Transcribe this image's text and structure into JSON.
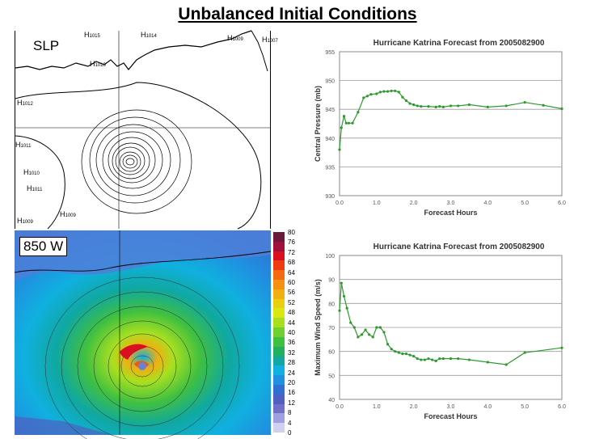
{
  "title": "Unbalanced Initial Conditions",
  "maps": {
    "slp_label": "SLP",
    "wind_label": "850 W",
    "slp_marks": [
      {
        "t": "H",
        "v": "1015"
      },
      {
        "t": "H",
        "v": "1014"
      },
      {
        "t": "H",
        "v": "1009"
      },
      {
        "t": "H",
        "v": "1007"
      },
      {
        "t": "H",
        "v": "1010"
      },
      {
        "t": "H",
        "v": "1012"
      },
      {
        "t": "H",
        "v": "1011"
      },
      {
        "t": "H",
        "v": "1010"
      },
      {
        "t": "H",
        "v": "1011"
      },
      {
        "t": "H",
        "v": "1009"
      },
      {
        "t": "H",
        "v": "1009"
      }
    ]
  },
  "colorbar": {
    "labels": [
      "80",
      "76",
      "72",
      "68",
      "64",
      "60",
      "56",
      "52",
      "48",
      "44",
      "40",
      "36",
      "32",
      "28",
      "24",
      "20",
      "16",
      "12",
      "8",
      "4",
      "0"
    ],
    "colors": [
      "#6b1a3a",
      "#a0103a",
      "#d81020",
      "#f03a10",
      "#f56a10",
      "#f59010",
      "#f0b010",
      "#e8d010",
      "#d8e810",
      "#a8e020",
      "#70d030",
      "#40c040",
      "#20b060",
      "#10a8a0",
      "#10b0e0",
      "#2090e0",
      "#3070d0",
      "#5060c0",
      "#7070c8",
      "#a0a0e0",
      "#d0d0f0"
    ]
  },
  "chart_data": [
    {
      "type": "line",
      "title": "Hurricane Katrina Forecast from 2005082900",
      "xlabel": "Forecast Hours",
      "ylabel": "Central Pressure (mb)",
      "xlim": [
        0,
        6
      ],
      "ylim": [
        930,
        955
      ],
      "xticks": [
        "0.0",
        "1.0",
        "2.0",
        "3.0",
        "4.0",
        "5.0",
        "6.0"
      ],
      "yticks": [
        "955",
        "950",
        "945",
        "940",
        "935",
        "930"
      ],
      "series": [
        {
          "color": "#2e9a2e",
          "x": [
            0.0,
            0.05,
            0.12,
            0.18,
            0.25,
            0.35,
            0.5,
            0.65,
            0.75,
            0.85,
            1.0,
            1.1,
            1.2,
            1.3,
            1.4,
            1.5,
            1.6,
            1.7,
            1.8,
            1.9,
            2.0,
            2.1,
            2.2,
            2.4,
            2.6,
            2.7,
            2.8,
            3.0,
            3.2,
            3.5,
            4.0,
            4.5,
            5.0,
            5.5,
            6.0
          ],
          "y": [
            938.0,
            941.8,
            943.8,
            942.6,
            942.6,
            942.6,
            944.5,
            947.0,
            947.3,
            947.6,
            947.7,
            948.0,
            948.1,
            948.1,
            948.2,
            948.2,
            948.0,
            947.1,
            946.5,
            946.0,
            945.8,
            945.6,
            945.5,
            945.5,
            945.4,
            945.5,
            945.4,
            945.6,
            945.6,
            945.8,
            945.4,
            945.6,
            946.2,
            945.7,
            945.1
          ]
        }
      ]
    },
    {
      "type": "line",
      "title": "Hurricane Katrina Forecast from 2005082900",
      "xlabel": "Forecast Hours",
      "ylabel": "Maximum Wind Speed (m/s)",
      "xlim": [
        0,
        6
      ],
      "ylim": [
        40,
        100
      ],
      "xticks": [
        "0.0",
        "1.0",
        "2.0",
        "3.0",
        "4.0",
        "5.0",
        "6.0"
      ],
      "yticks": [
        "100",
        "90",
        "80",
        "70",
        "60",
        "50",
        "40"
      ],
      "series": [
        {
          "color": "#2e9a2e",
          "x": [
            0.0,
            0.05,
            0.12,
            0.2,
            0.3,
            0.4,
            0.5,
            0.6,
            0.7,
            0.8,
            0.9,
            1.0,
            1.1,
            1.2,
            1.3,
            1.4,
            1.5,
            1.6,
            1.7,
            1.8,
            1.9,
            2.0,
            2.1,
            2.2,
            2.3,
            2.4,
            2.5,
            2.6,
            2.7,
            2.8,
            3.0,
            3.2,
            3.5,
            4.0,
            4.5,
            5.0,
            6.0
          ],
          "y": [
            77.0,
            88.5,
            83.0,
            78.0,
            72.0,
            70.0,
            66.0,
            67.0,
            69.0,
            67.0,
            66.0,
            70.0,
            70.0,
            68.0,
            63.0,
            61.0,
            60.0,
            59.5,
            59.0,
            59.0,
            58.5,
            58.0,
            57.0,
            56.5,
            56.5,
            57.0,
            56.5,
            56.0,
            57.0,
            57.0,
            57.0,
            57.0,
            56.5,
            55.5,
            54.5,
            59.5,
            61.5
          ]
        }
      ]
    }
  ]
}
